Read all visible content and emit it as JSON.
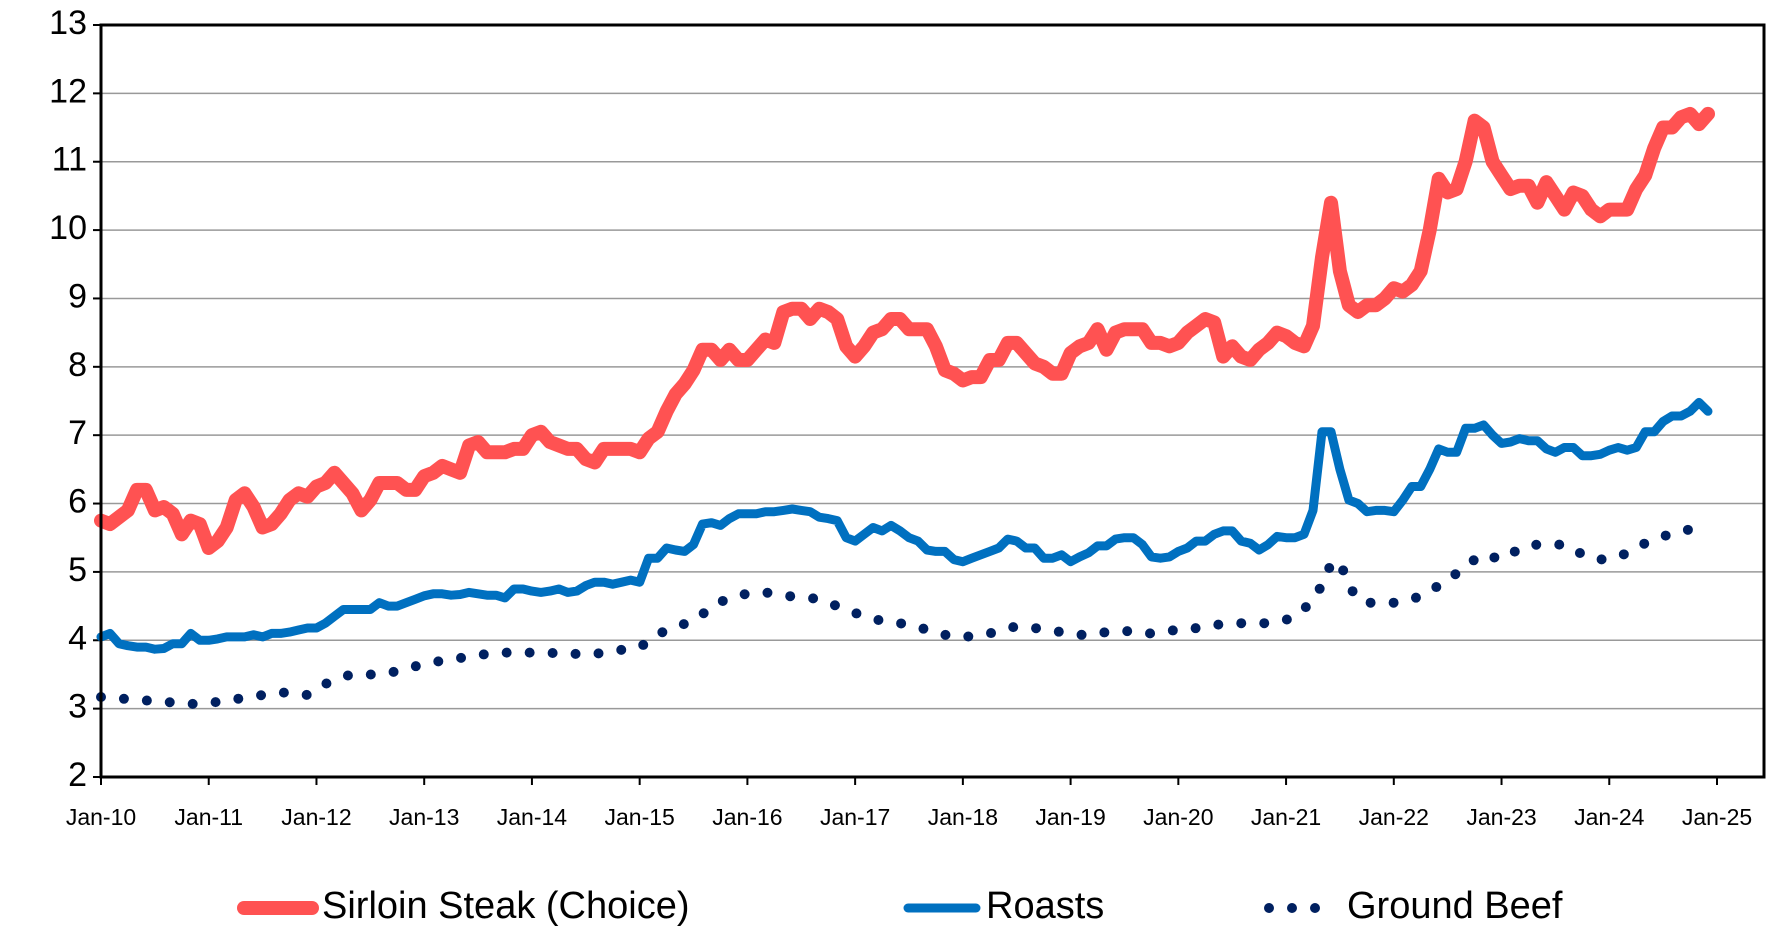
{
  "chart_data": {
    "type": "line",
    "categories": [
      "Jan-10",
      null,
      null,
      null,
      null,
      null,
      null,
      null,
      null,
      null,
      null,
      null,
      "Jan-11",
      null,
      null,
      null,
      null,
      null,
      null,
      null,
      null,
      null,
      null,
      null,
      "Jan-12",
      null,
      null,
      null,
      null,
      null,
      null,
      null,
      null,
      null,
      null,
      null,
      "Jan-13",
      null,
      null,
      null,
      null,
      null,
      null,
      null,
      null,
      null,
      null,
      null,
      "Jan-14",
      null,
      null,
      null,
      null,
      null,
      null,
      null,
      null,
      null,
      null,
      null,
      "Jan-15",
      null,
      null,
      null,
      null,
      null,
      null,
      null,
      null,
      null,
      null,
      null,
      "Jan-16",
      null,
      null,
      null,
      null,
      null,
      null,
      null,
      null,
      null,
      null,
      null,
      "Jan-17",
      null,
      null,
      null,
      null,
      null,
      null,
      null,
      null,
      null,
      null,
      null,
      "Jan-18",
      null,
      null,
      null,
      null,
      null,
      null,
      null,
      null,
      null,
      null,
      null,
      "Jan-19",
      null,
      null,
      null,
      null,
      null,
      null,
      null,
      null,
      null,
      null,
      null,
      "Jan-20",
      null,
      null,
      null,
      null,
      null,
      null,
      null,
      null,
      null,
      null,
      null,
      "Jan-21",
      null,
      null,
      null,
      null,
      null,
      null,
      null,
      null,
      null,
      null,
      null,
      "Jan-22",
      null,
      null,
      null,
      null,
      null,
      null,
      null,
      null,
      null,
      null,
      null,
      "Jan-23",
      null,
      null,
      null,
      null,
      null,
      null,
      null,
      null,
      null,
      null,
      null,
      "Jan-24",
      null,
      null,
      null,
      null,
      null,
      null,
      null,
      null,
      null,
      null,
      null,
      "Jan-25"
    ],
    "series": [
      {
        "name": "Sirloin Steak (Choice)",
        "color": "#ff5252",
        "style": "solid",
        "values": [
          5.75,
          5.7,
          5.8,
          5.9,
          6.2,
          6.2,
          5.9,
          5.95,
          5.85,
          5.55,
          5.75,
          5.7,
          5.35,
          5.45,
          5.65,
          6.05,
          6.15,
          5.95,
          5.65,
          5.7,
          5.85,
          6.05,
          6.15,
          6.1,
          6.25,
          6.3,
          6.45,
          6.3,
          6.15,
          5.9,
          6.05,
          6.3,
          6.3,
          6.3,
          6.2,
          6.2,
          6.4,
          6.45,
          6.55,
          6.5,
          6.45,
          6.85,
          6.9,
          6.75,
          6.75,
          6.75,
          6.8,
          6.8,
          7.0,
          7.05,
          6.9,
          6.85,
          6.8,
          6.8,
          6.65,
          6.6,
          6.8,
          6.8,
          6.8,
          6.8,
          6.75,
          6.95,
          7.05,
          7.35,
          7.6,
          7.75,
          7.95,
          8.25,
          8.25,
          8.1,
          8.25,
          8.1,
          8.1,
          8.25,
          8.4,
          8.35,
          8.8,
          8.85,
          8.85,
          8.7,
          8.85,
          8.8,
          8.7,
          8.3,
          8.15,
          8.3,
          8.5,
          8.55,
          8.7,
          8.7,
          8.55,
          8.55,
          8.55,
          8.3,
          7.95,
          7.9,
          7.8,
          7.85,
          7.85,
          8.1,
          8.1,
          8.35,
          8.35,
          8.2,
          8.05,
          8.0,
          7.9,
          7.9,
          8.2,
          8.3,
          8.35,
          8.55,
          8.25,
          8.5,
          8.55,
          8.55,
          8.55,
          8.35,
          8.35,
          8.3,
          8.35,
          8.5,
          8.6,
          8.7,
          8.65,
          8.15,
          8.3,
          8.15,
          8.1,
          8.25,
          8.35,
          8.5,
          8.45,
          8.35,
          8.3,
          8.6,
          9.6,
          10.4,
          9.4,
          8.9,
          8.8,
          8.9,
          8.9,
          9.0,
          9.15,
          9.1,
          9.2,
          9.4,
          10.0,
          10.75,
          10.55,
          10.6,
          11.0,
          11.6,
          11.5,
          11.0,
          10.8,
          10.6,
          10.65,
          10.65,
          10.4,
          10.7,
          10.5,
          10.3,
          10.55,
          10.5,
          10.3,
          10.2,
          10.3,
          10.3,
          10.3,
          10.6,
          10.8,
          11.2,
          11.5,
          11.5,
          11.65,
          11.7,
          11.55,
          11.7,
          null
        ]
      },
      {
        "name": "Roasts",
        "color": "#0070c0",
        "style": "solid",
        "values": [
          4.05,
          4.1,
          3.95,
          3.92,
          3.9,
          3.9,
          3.87,
          3.88,
          3.95,
          3.95,
          4.1,
          4.0,
          4.0,
          4.02,
          4.05,
          4.05,
          4.05,
          4.08,
          4.05,
          4.1,
          4.1,
          4.12,
          4.15,
          4.18,
          4.18,
          4.25,
          4.35,
          4.45,
          4.45,
          4.45,
          4.45,
          4.55,
          4.5,
          4.5,
          4.55,
          4.6,
          4.65,
          4.68,
          4.68,
          4.66,
          4.67,
          4.7,
          4.68,
          4.66,
          4.66,
          4.62,
          4.75,
          4.75,
          4.72,
          4.7,
          4.72,
          4.75,
          4.7,
          4.72,
          4.8,
          4.85,
          4.85,
          4.82,
          4.85,
          4.88,
          4.85,
          5.2,
          5.2,
          5.35,
          5.32,
          5.3,
          5.4,
          5.7,
          5.72,
          5.68,
          5.78,
          5.85,
          5.85,
          5.85,
          5.88,
          5.88,
          5.9,
          5.92,
          5.9,
          5.88,
          5.8,
          5.78,
          5.75,
          5.5,
          5.45,
          5.55,
          5.65,
          5.6,
          5.68,
          5.6,
          5.5,
          5.45,
          5.32,
          5.3,
          5.3,
          5.18,
          5.15,
          5.2,
          5.25,
          5.3,
          5.35,
          5.48,
          5.45,
          5.35,
          5.35,
          5.2,
          5.2,
          5.25,
          5.15,
          5.22,
          5.28,
          5.38,
          5.38,
          5.48,
          5.5,
          5.5,
          5.4,
          5.22,
          5.2,
          5.22,
          5.3,
          5.35,
          5.45,
          5.45,
          5.55,
          5.6,
          5.6,
          5.45,
          5.42,
          5.32,
          5.4,
          5.52,
          5.5,
          5.5,
          5.55,
          5.9,
          7.05,
          7.05,
          6.5,
          6.05,
          6.0,
          5.88,
          5.9,
          5.9,
          5.88,
          6.05,
          6.25,
          6.25,
          6.5,
          6.8,
          6.75,
          6.75,
          7.1,
          7.1,
          7.15,
          7.0,
          6.88,
          6.9,
          6.95,
          6.92,
          6.92,
          6.8,
          6.75,
          6.82,
          6.82,
          6.7,
          6.7,
          6.72,
          6.78,
          6.82,
          6.78,
          6.82,
          7.05,
          7.05,
          7.2,
          7.28,
          7.28,
          7.35,
          7.48,
          7.35,
          null
        ]
      },
      {
        "name": "Ground Beef",
        "color": "#002060",
        "style": "dotted",
        "values": [
          3.17,
          3.16,
          3.15,
          3.14,
          3.13,
          3.12,
          3.1,
          3.1,
          3.09,
          3.08,
          3.07,
          3.07,
          3.08,
          3.1,
          3.12,
          3.14,
          3.16,
          3.18,
          3.2,
          3.22,
          3.23,
          3.24,
          3.22,
          3.2,
          3.28,
          3.36,
          3.42,
          3.47,
          3.5,
          3.5,
          3.5,
          3.5,
          3.52,
          3.55,
          3.58,
          3.62,
          3.65,
          3.68,
          3.7,
          3.72,
          3.74,
          3.76,
          3.78,
          3.8,
          3.8,
          3.82,
          3.82,
          3.82,
          3.82,
          3.82,
          3.82,
          3.8,
          3.8,
          3.8,
          3.8,
          3.8,
          3.82,
          3.84,
          3.86,
          3.9,
          3.9,
          3.98,
          4.08,
          4.15,
          4.2,
          4.24,
          4.28,
          4.38,
          4.5,
          4.56,
          4.62,
          4.66,
          4.68,
          4.7,
          4.7,
          4.68,
          4.66,
          4.64,
          4.63,
          4.62,
          4.6,
          4.55,
          4.5,
          4.45,
          4.4,
          4.35,
          4.32,
          4.28,
          4.27,
          4.25,
          4.22,
          4.2,
          4.15,
          4.1,
          4.08,
          4.06,
          4.05,
          4.06,
          4.08,
          4.1,
          4.14,
          4.18,
          4.2,
          4.2,
          4.18,
          4.16,
          4.14,
          4.12,
          4.1,
          4.08,
          4.08,
          4.1,
          4.12,
          4.14,
          4.14,
          4.12,
          4.1,
          4.1,
          4.12,
          4.14,
          4.15,
          4.15,
          4.18,
          4.2,
          4.22,
          4.24,
          4.25,
          4.25,
          4.25,
          4.25,
          4.25,
          4.28,
          4.3,
          4.35,
          4.45,
          4.62,
          4.8,
          5.12,
          5.15,
          4.8,
          4.6,
          4.55,
          4.55,
          4.55,
          4.55,
          4.58,
          4.6,
          4.65,
          4.72,
          4.8,
          4.88,
          4.98,
          5.08,
          5.18,
          5.26,
          5.22,
          5.18,
          5.25,
          5.35,
          5.38,
          5.4,
          5.4,
          5.4,
          5.4,
          5.35,
          5.25,
          5.2,
          5.18,
          5.2,
          5.22,
          5.28,
          5.35,
          5.42,
          5.48,
          5.52,
          5.56,
          5.6,
          5.62,
          5.64,
          5.66,
          null
        ]
      }
    ],
    "ylim": [
      2,
      13
    ],
    "yticks": [
      2,
      3,
      4,
      5,
      6,
      7,
      8,
      9,
      10,
      11,
      12,
      13
    ],
    "grid": true,
    "legend": "bottom"
  }
}
